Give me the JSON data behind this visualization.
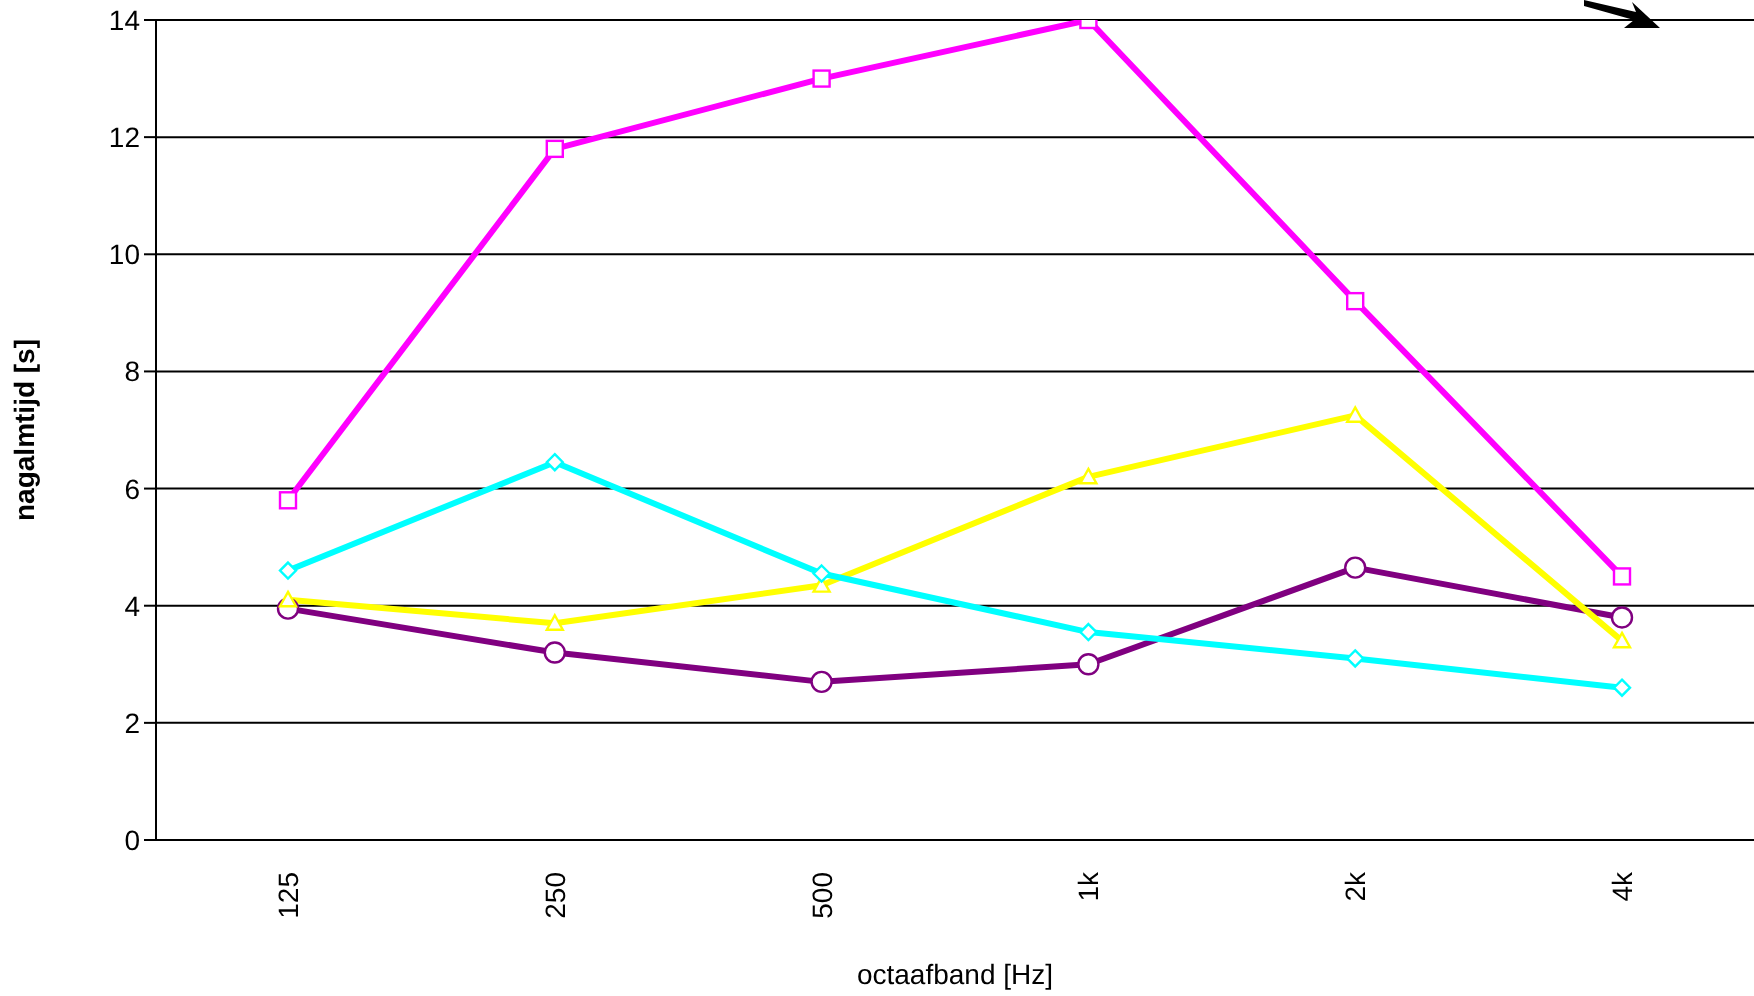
{
  "chart_data": {
    "type": "line",
    "xlabel": "octaafband [Hz]",
    "ylabel": "nagalmtijd [s]",
    "categories": [
      "125",
      "250",
      "500",
      "1k",
      "2k",
      "4k"
    ],
    "series": [
      {
        "color": "#ff00ff",
        "marker": "square",
        "values": [
          5.8,
          11.8,
          13.0,
          14.0,
          9.2,
          4.5
        ]
      },
      {
        "color": "#00ffff",
        "marker": "diamond",
        "values": [
          4.6,
          6.45,
          4.55,
          3.55,
          3.1,
          2.6
        ]
      },
      {
        "color": "#ffff00",
        "marker": "triangle",
        "values": [
          4.1,
          3.7,
          4.35,
          6.2,
          7.25,
          3.4
        ]
      },
      {
        "color": "#800080",
        "marker": "circle",
        "values": [
          3.95,
          3.2,
          2.7,
          3.0,
          4.65,
          3.8
        ]
      }
    ],
    "ylim": [
      0,
      14
    ],
    "yticks": [
      0,
      2,
      4,
      6,
      8,
      10,
      12,
      14
    ],
    "grid": "y",
    "legend": false
  }
}
